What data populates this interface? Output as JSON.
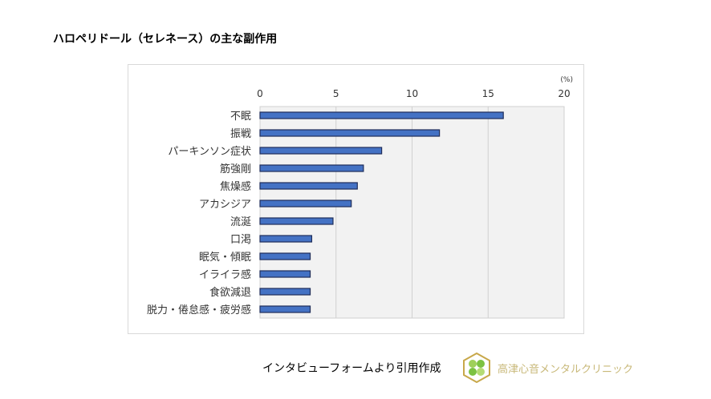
{
  "title": "ハロペリドール（セレネース）の主な副作用",
  "chart_data": {
    "type": "bar",
    "orientation": "horizontal",
    "title": "",
    "unit_label": "(%)",
    "categories": [
      "不眠",
      "振戦",
      "パーキンソン症状",
      "筋強剛",
      "焦燥感",
      "アカシジア",
      "流涎",
      "口渇",
      "眠気・傾眠",
      "イライラ感",
      "食欲減退",
      "脱力・倦怠感・疲労感"
    ],
    "values": [
      16.0,
      11.8,
      8.0,
      6.8,
      6.4,
      6.0,
      4.8,
      3.4,
      3.3,
      3.3,
      3.3,
      3.3
    ],
    "xlim": [
      0,
      20
    ],
    "xticks": [
      "0",
      "5",
      "10",
      "15",
      "20"
    ],
    "axis_position": "top",
    "grid": true,
    "bar_color": "#4472c4",
    "bar_edge_color": "#1f2d5a",
    "plot_background": "#f2f2f2"
  },
  "source": "インタビューフォームより引用作成",
  "clinic_name": "高津心音メンタルクリニック"
}
